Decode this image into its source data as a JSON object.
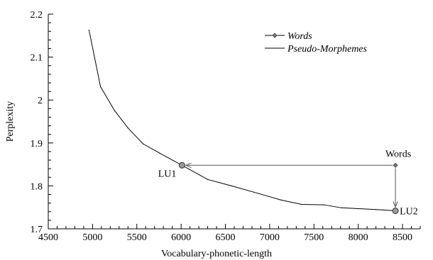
{
  "chart_data": {
    "type": "line",
    "xlabel": "Vocabulary-phonetic-length",
    "ylabel": "Perplexity",
    "xlim": [
      4500,
      8700
    ],
    "ylim": [
      1.7,
      2.2
    ],
    "x_ticks": [
      4500,
      5000,
      5500,
      6000,
      6500,
      7000,
      7500,
      8000,
      8500
    ],
    "y_ticks": [
      1.7,
      1.8,
      1.9,
      2.0,
      2.1,
      2.2
    ],
    "x_tick_labels": [
      "4500",
      "5000",
      "5500",
      "6000",
      "6500",
      "7000",
      "7500",
      "8000",
      "8500"
    ],
    "y_tick_labels": [
      "1.7",
      "1.8",
      "1.9",
      "2",
      "2.1",
      "2.2"
    ],
    "legend_position": "top-right",
    "series": [
      {
        "name": "Words",
        "marker": "diamond",
        "x": [
          8420
        ],
        "y": [
          1.848
        ]
      },
      {
        "name": "Pseudo-Morphemes",
        "marker": "none",
        "x": [
          4960,
          5090,
          5250,
          5400,
          5570,
          5760,
          6010,
          6300,
          6570,
          6880,
          7130,
          7360,
          7610,
          7810,
          8000,
          8200,
          8420
        ],
        "y": [
          2.163,
          2.031,
          1.975,
          1.935,
          1.898,
          1.876,
          1.848,
          1.815,
          1.8,
          1.782,
          1.767,
          1.757,
          1.756,
          1.749,
          1.747,
          1.745,
          1.742
        ]
      }
    ],
    "annotations": [
      {
        "label": "Words",
        "x": 8420,
        "y": 1.848
      },
      {
        "label": "LU1",
        "x": 6010,
        "y": 1.848
      },
      {
        "label": "LU2",
        "x": 8420,
        "y": 1.742
      }
    ],
    "arrows": [
      {
        "from": [
          8420,
          1.848
        ],
        "to": [
          6010,
          1.848
        ]
      },
      {
        "from": [
          8420,
          1.848
        ],
        "to": [
          8420,
          1.742
        ]
      }
    ]
  }
}
